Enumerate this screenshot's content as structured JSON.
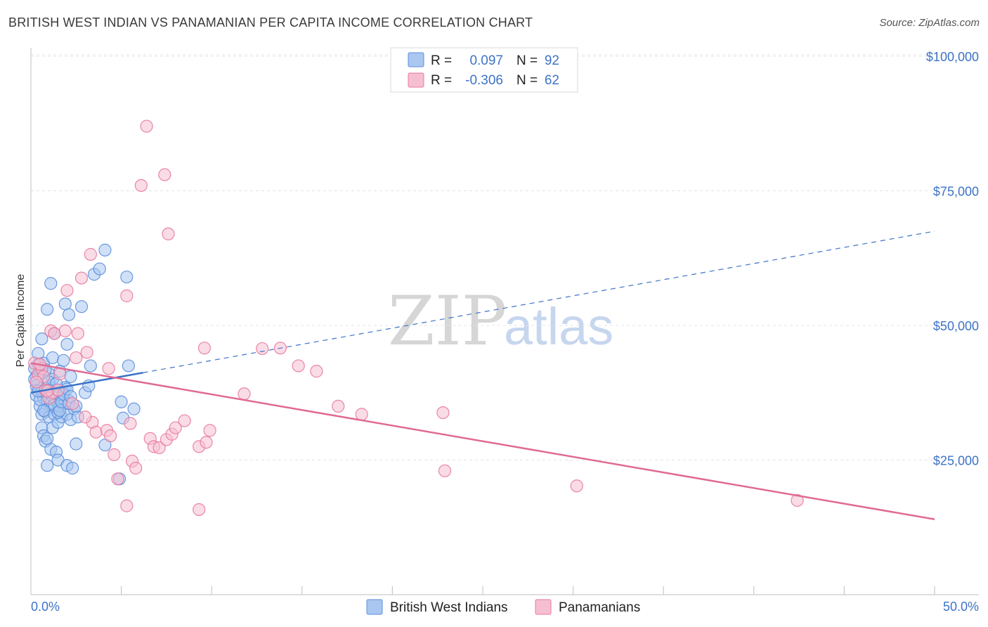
{
  "header": {
    "title": "BRITISH WEST INDIAN VS PANAMANIAN PER CAPITA INCOME CORRELATION CHART",
    "source": "Source: ZipAtlas.com"
  },
  "watermark": {
    "part1": "ZIP",
    "part2": "atlas"
  },
  "legend": {
    "r_label": "R =",
    "n_label": "N =",
    "series1": {
      "r": "0.097",
      "n": "92"
    },
    "series2": {
      "r": "-0.306",
      "n": "62"
    }
  },
  "chart_data": {
    "type": "scatter",
    "title": "British West Indian vs Panamanian Per Capita Income Correlation Chart",
    "ylabel": "Per Capita Income",
    "xlabel": "",
    "xlim": [
      0,
      50
    ],
    "ylim": [
      0,
      105000
    ],
    "x_tick_labels": [
      "0.0%",
      "50.0%"
    ],
    "y_ticks": [
      {
        "value": 25000,
        "label": "$25,000"
      },
      {
        "value": 50000,
        "label": "$50,000"
      },
      {
        "value": 75000,
        "label": "$75,000"
      },
      {
        "value": 100000,
        "label": "$100,000"
      }
    ],
    "series": [
      {
        "name": "British West Indians",
        "color": "#5b8fdc",
        "fill": "#a9c7f0",
        "r": 0.097,
        "n": 92,
        "trend": {
          "x0": 0,
          "y0": 37500,
          "x_solid_end": 6.2,
          "x1": 50,
          "y1": 67500
        },
        "points": [
          [
            0.2,
            42000
          ],
          [
            0.3,
            40500
          ],
          [
            0.3,
            37000
          ],
          [
            0.4,
            44800
          ],
          [
            0.4,
            39000
          ],
          [
            0.5,
            41000
          ],
          [
            0.5,
            35000
          ],
          [
            0.6,
            47500
          ],
          [
            0.6,
            33500
          ],
          [
            0.6,
            31000
          ],
          [
            0.7,
            43000
          ],
          [
            0.7,
            36500
          ],
          [
            0.7,
            29500
          ],
          [
            0.8,
            38000
          ],
          [
            0.8,
            34000
          ],
          [
            0.8,
            28500
          ],
          [
            0.9,
            53000
          ],
          [
            0.9,
            24000
          ],
          [
            0.9,
            36000
          ],
          [
            1.0,
            41000
          ],
          [
            1.0,
            33000
          ],
          [
            1.1,
            57800
          ],
          [
            1.1,
            38500
          ],
          [
            1.1,
            27000
          ],
          [
            1.2,
            44000
          ],
          [
            1.2,
            35000
          ],
          [
            1.2,
            31000
          ],
          [
            1.2,
            40000
          ],
          [
            1.3,
            48500
          ],
          [
            1.3,
            33500
          ],
          [
            1.4,
            36000
          ],
          [
            1.4,
            26500
          ],
          [
            1.4,
            38000
          ],
          [
            1.5,
            32000
          ],
          [
            1.5,
            34500
          ],
          [
            1.5,
            25000
          ],
          [
            1.6,
            41500
          ],
          [
            1.6,
            35000
          ],
          [
            1.7,
            33000
          ],
          [
            1.7,
            36500
          ],
          [
            1.8,
            43500
          ],
          [
            1.8,
            37500
          ],
          [
            1.9,
            54000
          ],
          [
            1.9,
            38500
          ],
          [
            2.0,
            46500
          ],
          [
            2.0,
            33500
          ],
          [
            2.0,
            24000
          ],
          [
            2.1,
            52000
          ],
          [
            2.1,
            36000
          ],
          [
            2.2,
            40500
          ],
          [
            2.2,
            32500
          ],
          [
            2.3,
            23500
          ],
          [
            2.4,
            34500
          ],
          [
            2.5,
            28000
          ],
          [
            2.6,
            33000
          ],
          [
            2.8,
            53500
          ],
          [
            3.0,
            37500
          ],
          [
            3.2,
            38800
          ],
          [
            3.3,
            42500
          ],
          [
            3.5,
            59500
          ],
          [
            3.8,
            60500
          ],
          [
            4.1,
            64000
          ],
          [
            4.1,
            27800
          ],
          [
            4.9,
            21500
          ],
          [
            5.0,
            35800
          ],
          [
            5.1,
            32800
          ],
          [
            5.3,
            59000
          ],
          [
            5.4,
            42500
          ],
          [
            5.7,
            34500
          ],
          [
            0.3,
            38800
          ],
          [
            0.4,
            42800
          ],
          [
            0.5,
            36200
          ],
          [
            0.6,
            37800
          ],
          [
            0.7,
            34200
          ],
          [
            0.8,
            41800
          ],
          [
            0.9,
            29000
          ],
          [
            1.0,
            39500
          ],
          [
            1.1,
            37200
          ],
          [
            1.2,
            36800
          ],
          [
            1.3,
            35200
          ],
          [
            1.4,
            39200
          ],
          [
            1.5,
            33800
          ],
          [
            1.6,
            34200
          ],
          [
            1.7,
            35800
          ],
          [
            1.8,
            37200
          ],
          [
            2.0,
            38200
          ],
          [
            2.1,
            35500
          ],
          [
            2.2,
            36800
          ],
          [
            0.2,
            40000
          ],
          [
            0.4,
            37800
          ],
          [
            1.0,
            38000
          ],
          [
            2.5,
            35000
          ]
        ]
      },
      {
        "name": "Panamanians",
        "color": "#e8799d",
        "fill": "#f6bfd1",
        "r": -0.306,
        "n": 62,
        "trend": {
          "x0": 0,
          "y0": 43000,
          "x1": 50,
          "y1": 14000
        },
        "points": [
          [
            0.2,
            43000
          ],
          [
            0.4,
            41000
          ],
          [
            0.6,
            42000
          ],
          [
            0.7,
            40500
          ],
          [
            0.8,
            38000
          ],
          [
            1.0,
            36500
          ],
          [
            1.1,
            49000
          ],
          [
            1.2,
            37500
          ],
          [
            1.3,
            48500
          ],
          [
            1.5,
            38000
          ],
          [
            1.6,
            41000
          ],
          [
            1.9,
            49000
          ],
          [
            2.0,
            56500
          ],
          [
            2.3,
            35500
          ],
          [
            2.5,
            44000
          ],
          [
            2.6,
            48500
          ],
          [
            2.8,
            58800
          ],
          [
            3.1,
            45000
          ],
          [
            3.3,
            63200
          ],
          [
            3.4,
            32000
          ],
          [
            3.6,
            30200
          ],
          [
            4.2,
            30500
          ],
          [
            4.3,
            42000
          ],
          [
            4.4,
            29500
          ],
          [
            4.6,
            26000
          ],
          [
            4.8,
            21500
          ],
          [
            5.3,
            16500
          ],
          [
            5.3,
            55500
          ],
          [
            5.5,
            31800
          ],
          [
            5.6,
            24800
          ],
          [
            5.8,
            23500
          ],
          [
            6.1,
            76000
          ],
          [
            6.4,
            87000
          ],
          [
            6.6,
            29000
          ],
          [
            6.8,
            27500
          ],
          [
            7.1,
            27300
          ],
          [
            7.4,
            78000
          ],
          [
            7.5,
            28800
          ],
          [
            7.6,
            67000
          ],
          [
            7.8,
            29800
          ],
          [
            8.0,
            31000
          ],
          [
            8.5,
            32300
          ],
          [
            9.3,
            15800
          ],
          [
            9.3,
            27500
          ],
          [
            9.6,
            45800
          ],
          [
            9.7,
            28300
          ],
          [
            9.9,
            30500
          ],
          [
            11.8,
            37300
          ],
          [
            12.8,
            45700
          ],
          [
            13.8,
            45800
          ],
          [
            14.8,
            42500
          ],
          [
            15.8,
            41500
          ],
          [
            17.0,
            35000
          ],
          [
            18.3,
            33500
          ],
          [
            22.8,
            33800
          ],
          [
            22.9,
            23000
          ],
          [
            30.2,
            20200
          ],
          [
            42.4,
            17500
          ],
          [
            0.3,
            39500
          ],
          [
            0.5,
            42800
          ],
          [
            0.9,
            37800
          ],
          [
            3.0,
            33000
          ]
        ]
      }
    ]
  }
}
